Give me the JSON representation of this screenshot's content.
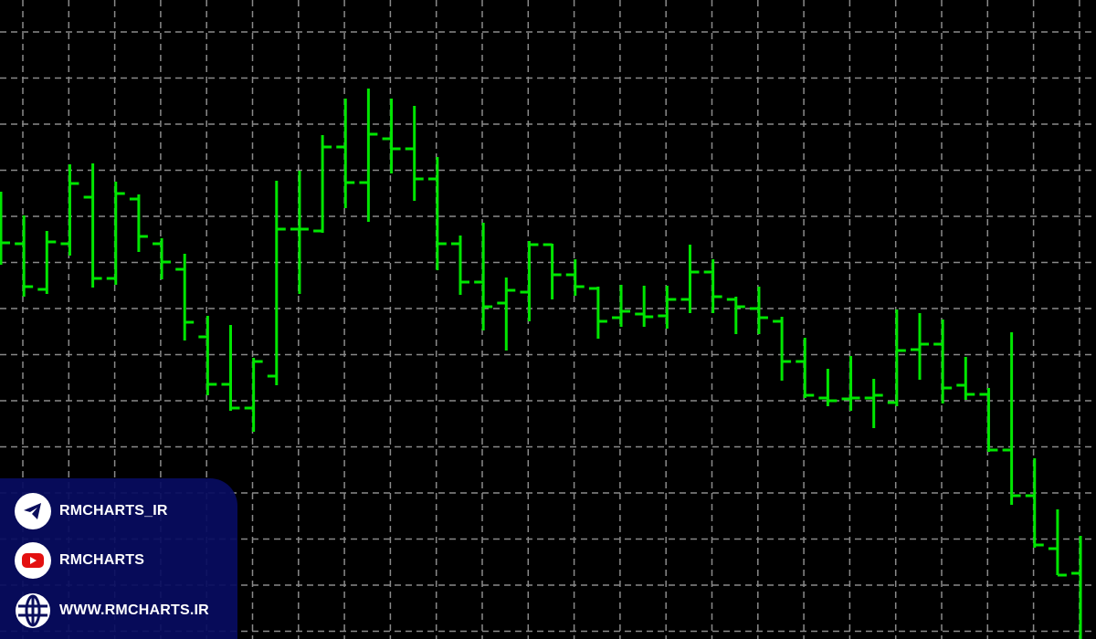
{
  "chart_data": {
    "type": "ohlc",
    "title": "",
    "xlabel": "",
    "ylabel": "",
    "grid": true,
    "grid_style": "dashed",
    "background": "#000000",
    "bar_color": "#00e600",
    "grid_color": "#8a8a8a",
    "ylim": [
      0,
      70
    ],
    "bars": [
      [
        43.4,
        49.0,
        41.0,
        43.4
      ],
      [
        43.3,
        46.4,
        37.5,
        38.6
      ],
      [
        38.3,
        44.7,
        37.8,
        43.5
      ],
      [
        43.3,
        52.0,
        42.0,
        49.9
      ],
      [
        48.4,
        52.1,
        38.5,
        39.5
      ],
      [
        39.5,
        50.1,
        38.8,
        48.8
      ],
      [
        48.2,
        48.7,
        42.4,
        44.1
      ],
      [
        43.3,
        43.9,
        39.4,
        41.3
      ],
      [
        40.5,
        42.2,
        32.7,
        34.7
      ],
      [
        33.1,
        35.4,
        26.7,
        27.9
      ],
      [
        27.9,
        34.4,
        25.0,
        25.3
      ],
      [
        25.3,
        30.8,
        22.7,
        30.4
      ],
      [
        28.8,
        50.2,
        27.8,
        44.9
      ],
      [
        44.9,
        51.3,
        37.8,
        44.9
      ],
      [
        44.7,
        55.2,
        44.5,
        53.9
      ],
      [
        53.9,
        59.2,
        47.2,
        50.0
      ],
      [
        50.0,
        60.3,
        45.7,
        55.3
      ],
      [
        54.8,
        59.2,
        51.0,
        53.7
      ],
      [
        53.7,
        58.4,
        48.0,
        50.4
      ],
      [
        50.4,
        52.8,
        40.4,
        43.3
      ],
      [
        43.3,
        44.2,
        37.7,
        39.1
      ],
      [
        39.1,
        45.6,
        33.8,
        36.4
      ],
      [
        36.8,
        39.6,
        31.6,
        38.2
      ],
      [
        38.0,
        43.6,
        34.8,
        43.2
      ],
      [
        43.2,
        43.3,
        37.2,
        39.9
      ],
      [
        39.9,
        41.6,
        37.6,
        38.6
      ],
      [
        38.4,
        38.6,
        32.9,
        34.8
      ],
      [
        35.2,
        38.8,
        34.2,
        35.9
      ],
      [
        35.6,
        38.7,
        34.2,
        35.3
      ],
      [
        35.4,
        38.7,
        34.0,
        37.2
      ],
      [
        37.2,
        43.2,
        35.7,
        40.2
      ],
      [
        40.2,
        41.6,
        35.7,
        37.5
      ],
      [
        37.2,
        37.5,
        33.4,
        36.4
      ],
      [
        36.2,
        38.6,
        33.4,
        35.2
      ],
      [
        34.8,
        35.3,
        28.3,
        30.4
      ],
      [
        30.4,
        33.0,
        26.4,
        26.7
      ],
      [
        26.4,
        29.6,
        25.5,
        26.1
      ],
      [
        26.3,
        31.0,
        25.0,
        26.4
      ],
      [
        26.4,
        28.5,
        23.1,
        26.7
      ],
      [
        25.9,
        36.1,
        25.5,
        31.6
      ],
      [
        31.7,
        35.7,
        28.4,
        32.3
      ],
      [
        32.3,
        35.0,
        25.8,
        27.5
      ],
      [
        27.8,
        30.9,
        26.2,
        26.8
      ],
      [
        26.8,
        27.5,
        20.5,
        20.7
      ],
      [
        20.7,
        33.6,
        14.7,
        15.7
      ],
      [
        15.7,
        19.8,
        10.0,
        10.3
      ],
      [
        9.9,
        14.2,
        7.0,
        7.0
      ],
      [
        7.2,
        11.3,
        -1.0,
        -1.0
      ]
    ]
  },
  "social": {
    "telegram": {
      "label": "RMCHARTS_IR",
      "icon": "telegram-icon"
    },
    "youtube": {
      "label": "RMCHARTS",
      "icon": "youtube-icon"
    },
    "website": {
      "label": "WWW.RMCHARTS.IR",
      "icon": "globe-icon"
    }
  }
}
